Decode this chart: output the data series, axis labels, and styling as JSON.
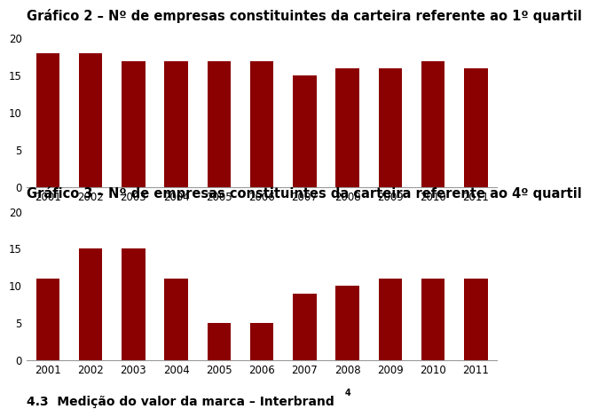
{
  "title1": "Gráfico 2 – Nº de empresas constituintes da carteira referente ao 1º quartil",
  "title2": "Gráfico 3 – Nº de empresas constituintes da carteira referente ao 4º quartil",
  "footer": "4.3  Medição do valor da marca – Interbrand",
  "footer_superscript": "4",
  "years": [
    2001,
    2002,
    2003,
    2004,
    2005,
    2006,
    2007,
    2008,
    2009,
    2010,
    2011
  ],
  "values1": [
    18,
    18,
    17,
    17,
    17,
    17,
    15,
    16,
    16,
    17,
    16
  ],
  "values2": [
    11,
    15,
    15,
    11,
    5,
    5,
    9,
    10,
    11,
    11,
    11
  ],
  "bar_color": "#8B0000",
  "ylim": [
    0,
    20
  ],
  "yticks": [
    0,
    5,
    10,
    15,
    20
  ],
  "title_fontsize": 10.5,
  "tick_fontsize": 8.5,
  "footer_fontsize": 10,
  "bg_color": "#FFFFFF"
}
